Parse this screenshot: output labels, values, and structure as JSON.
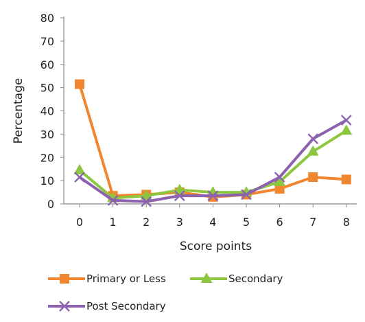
{
  "chart_data": {
    "type": "line",
    "xlabel": "Score points",
    "ylabel": "Percentage",
    "x": [
      0,
      1,
      2,
      3,
      4,
      5,
      6,
      7,
      8
    ],
    "ylim": [
      0,
      80
    ],
    "yticks": [
      0,
      10,
      20,
      30,
      40,
      50,
      60,
      70,
      80
    ],
    "grid": false,
    "legend_position": "bottom",
    "series": [
      {
        "name": "Primary or Less",
        "color": "#F0862E",
        "marker": "square",
        "values": [
          51.5,
          3.5,
          4,
          5,
          3,
          4,
          6.5,
          11.5,
          10.5
        ]
      },
      {
        "name": "Secondary",
        "color": "#8DC63F",
        "marker": "triangle",
        "values": [
          14.5,
          2.5,
          3.5,
          6,
          5,
          5,
          9.5,
          22.5,
          31.5
        ]
      },
      {
        "name": "Post Secondary",
        "color": "#8C62AF",
        "marker": "x",
        "values": [
          11.5,
          1.5,
          1,
          3.5,
          3.5,
          4,
          11.5,
          28,
          36
        ]
      }
    ]
  }
}
